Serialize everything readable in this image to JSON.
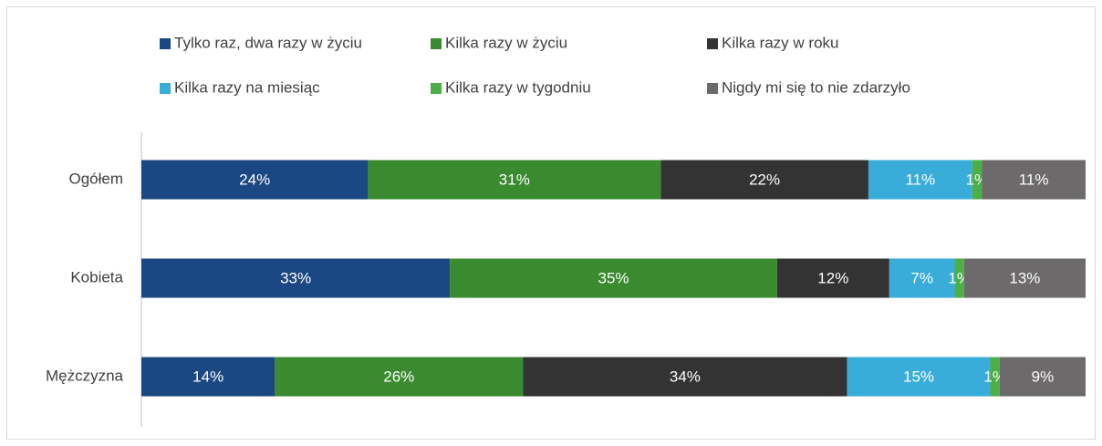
{
  "chart_data": {
    "type": "bar",
    "orientation": "horizontal",
    "stacking": "percent",
    "categories": [
      "Ogółem",
      "Kobieta",
      "Mężczyzna"
    ],
    "legend": "top",
    "series": [
      {
        "name": "Tylko raz, dwa razy w życiu",
        "color": "#1b4882",
        "values": [
          24,
          33,
          14
        ],
        "value_labels": [
          "24%",
          "33%",
          "14%"
        ]
      },
      {
        "name": "Kilka razy w życiu",
        "color": "#3a8a2f",
        "values": [
          31,
          35,
          26
        ],
        "value_labels": [
          "31%",
          "35%",
          "26%"
        ]
      },
      {
        "name": "Kilka razy w roku",
        "color": "#333333",
        "values": [
          22,
          12,
          34
        ],
        "value_labels": [
          "22%",
          "12%",
          "34%"
        ]
      },
      {
        "name": "Kilka razy na miesiąc",
        "color": "#3aacd9",
        "values": [
          11,
          7,
          15
        ],
        "value_labels": [
          "11%",
          "7%",
          "15%"
        ]
      },
      {
        "name": "Kilka razy w tygodniu",
        "color": "#4caf46",
        "values": [
          1,
          1,
          1
        ],
        "value_labels": [
          "1%",
          "1%",
          "1%"
        ]
      },
      {
        "name": "Nigdy mi się to nie zdarzyło",
        "color": "#6d6a6b",
        "values": [
          11,
          13,
          9
        ],
        "value_labels": [
          "11%",
          "13%",
          "9%"
        ]
      }
    ]
  }
}
